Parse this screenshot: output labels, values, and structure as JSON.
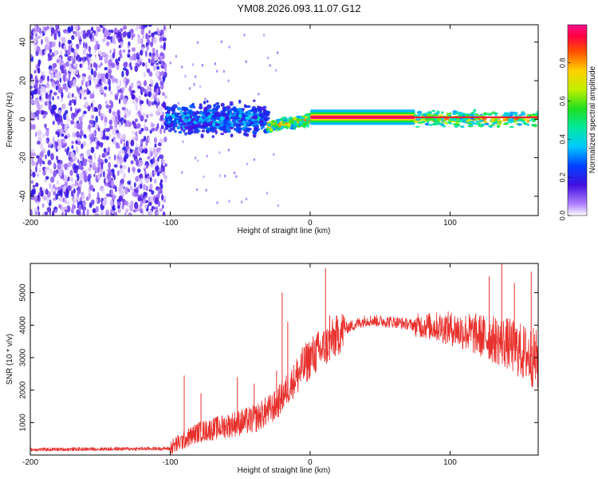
{
  "title": "YM08.2026.093.11.07.G12",
  "chart_data": [
    {
      "type": "heatmap",
      "name": "spectrogram",
      "xlabel": "Height of straight line (km)",
      "ylabel": "Frequency (Hz)",
      "xlim": [
        -200,
        163
      ],
      "ylim": [
        -50,
        49
      ],
      "xticks": [
        -200,
        -100,
        0,
        100
      ],
      "yticks": [
        -40,
        -20,
        0,
        20,
        40
      ],
      "colorbar": {
        "label": "Normalized spectral amplitude",
        "range": [
          0,
          1
        ],
        "ticks": [
          "0.0",
          "0.2",
          "0.4",
          "0.6",
          "0.8"
        ],
        "tick_values": [
          0.0,
          0.2,
          0.4,
          0.6,
          0.8
        ]
      },
      "regions": [
        {
          "x": [
            -200,
            -103
          ],
          "description": "broadband noise",
          "freq_spread": [
            -50,
            49
          ],
          "amplitude": [
            0.02,
            0.2
          ]
        },
        {
          "x": [
            -103,
            -30
          ],
          "description": "scattered signal",
          "center_freq": 0,
          "freq_spread": [
            -8,
            8
          ],
          "amplitude": [
            0.15,
            0.45
          ]
        },
        {
          "x": [
            -30,
            0
          ],
          "description": "signal emerging",
          "center_freq_start": -4,
          "center_freq_end": 0,
          "amplitude": [
            0.3,
            0.95
          ]
        },
        {
          "x": [
            0,
            75
          ],
          "description": "strong tone",
          "center_freq": 1,
          "amplitude": [
            0.9,
            1.0
          ]
        },
        {
          "x": [
            75,
            163
          ],
          "description": "weakening tone",
          "center_freq": 0,
          "amplitude": [
            0.3,
            0.9
          ]
        }
      ]
    },
    {
      "type": "line",
      "name": "snr",
      "xlabel": "Height of straight line (km)",
      "ylabel": "SNR (10 * v/v)",
      "xlim": [
        -200,
        163
      ],
      "ylim": [
        0,
        5900
      ],
      "xticks": [
        -200,
        -100,
        0,
        100
      ],
      "yticks": [
        1000,
        2000,
        3000,
        4000,
        5000
      ],
      "color": "#e8302c",
      "trend": {
        "x": [
          -200,
          -100,
          -95,
          -80,
          -60,
          -40,
          -25,
          -10,
          0,
          10,
          25,
          40,
          60,
          75,
          90,
          100,
          120,
          140,
          163
        ],
        "y": [
          170,
          200,
          350,
          700,
          900,
          1100,
          1500,
          2400,
          3000,
          3300,
          3900,
          4150,
          4100,
          4000,
          3950,
          3900,
          3700,
          3450,
          2900
        ]
      },
      "spikes": [
        {
          "x": -90,
          "y": 2450
        },
        {
          "x": -78,
          "y": 1900
        },
        {
          "x": -52,
          "y": 2400
        },
        {
          "x": -40,
          "y": 2200
        },
        {
          "x": -24,
          "y": 2600
        },
        {
          "x": -20,
          "y": 5000
        },
        {
          "x": -16,
          "y": 4100
        },
        {
          "x": 6,
          "y": 3800
        },
        {
          "x": 11,
          "y": 5750
        },
        {
          "x": 14,
          "y": 4300
        },
        {
          "x": 128,
          "y": 5500
        },
        {
          "x": 137,
          "y": 5900
        },
        {
          "x": 146,
          "y": 5300
        },
        {
          "x": 158,
          "y": 5650
        }
      ]
    }
  ]
}
